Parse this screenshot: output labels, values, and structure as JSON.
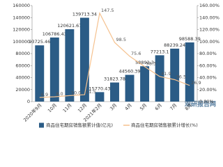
{
  "chart_data": {
    "type": "bar-line",
    "categories": [
      "2020年9月",
      "10月",
      "11月",
      "12月",
      "2021年2月",
      "3月",
      "4月",
      "5月",
      "6月",
      "7月",
      "8月"
    ],
    "series": [
      {
        "name": "商品住宅期房销售额累计值(亿元)",
        "type": "bar",
        "color": "#2b5c86",
        "values": [
          93725.46,
          106786.43,
          120621.67,
          139713.34,
          15770.43,
          31823.78,
          44560.39,
          58892.3,
          77213.1,
          88239.24,
          98588.39
        ]
      },
      {
        "name": "商品住宅期房销售额累计增长(%)",
        "type": "line",
        "axis": "y2",
        "color": "#f5c18e",
        "values": [
          6.9,
          8.0,
          10.0,
          11.5,
          147.5,
          98.5,
          75.6,
          58.3,
          41.9,
          36.5,
          26.9
        ],
        "value_labels": [
          "6.9",
          "8.0",
          "10.0",
          "11.5",
          "147.5",
          "98.5",
          "75.6",
          "58.3",
          "41.9",
          "36.5",
          "26.9"
        ]
      }
    ],
    "ylim": [
      0,
      160000
    ],
    "yticks": [
      0,
      20000,
      40000,
      60000,
      80000,
      100000,
      120000,
      140000,
      160000
    ],
    "y2lim": [
      0,
      160
    ],
    "y2ticks": [
      {
        "value": 0,
        "label": "0.00%"
      },
      {
        "value": 20,
        "label": "20.00%"
      },
      {
        "value": 40,
        "label": "40.00%"
      },
      {
        "value": 60,
        "label": "60.00%"
      },
      {
        "value": 80,
        "label": "80.00%"
      },
      {
        "value": 100,
        "label": "100.00%"
      },
      {
        "value": 120,
        "label": "120.00%"
      },
      {
        "value": 140,
        "label": "140.00%"
      },
      {
        "value": 160,
        "label": "160.00%"
      }
    ],
    "grid": false,
    "legend": "bottom",
    "watermark": "观研报告网"
  }
}
